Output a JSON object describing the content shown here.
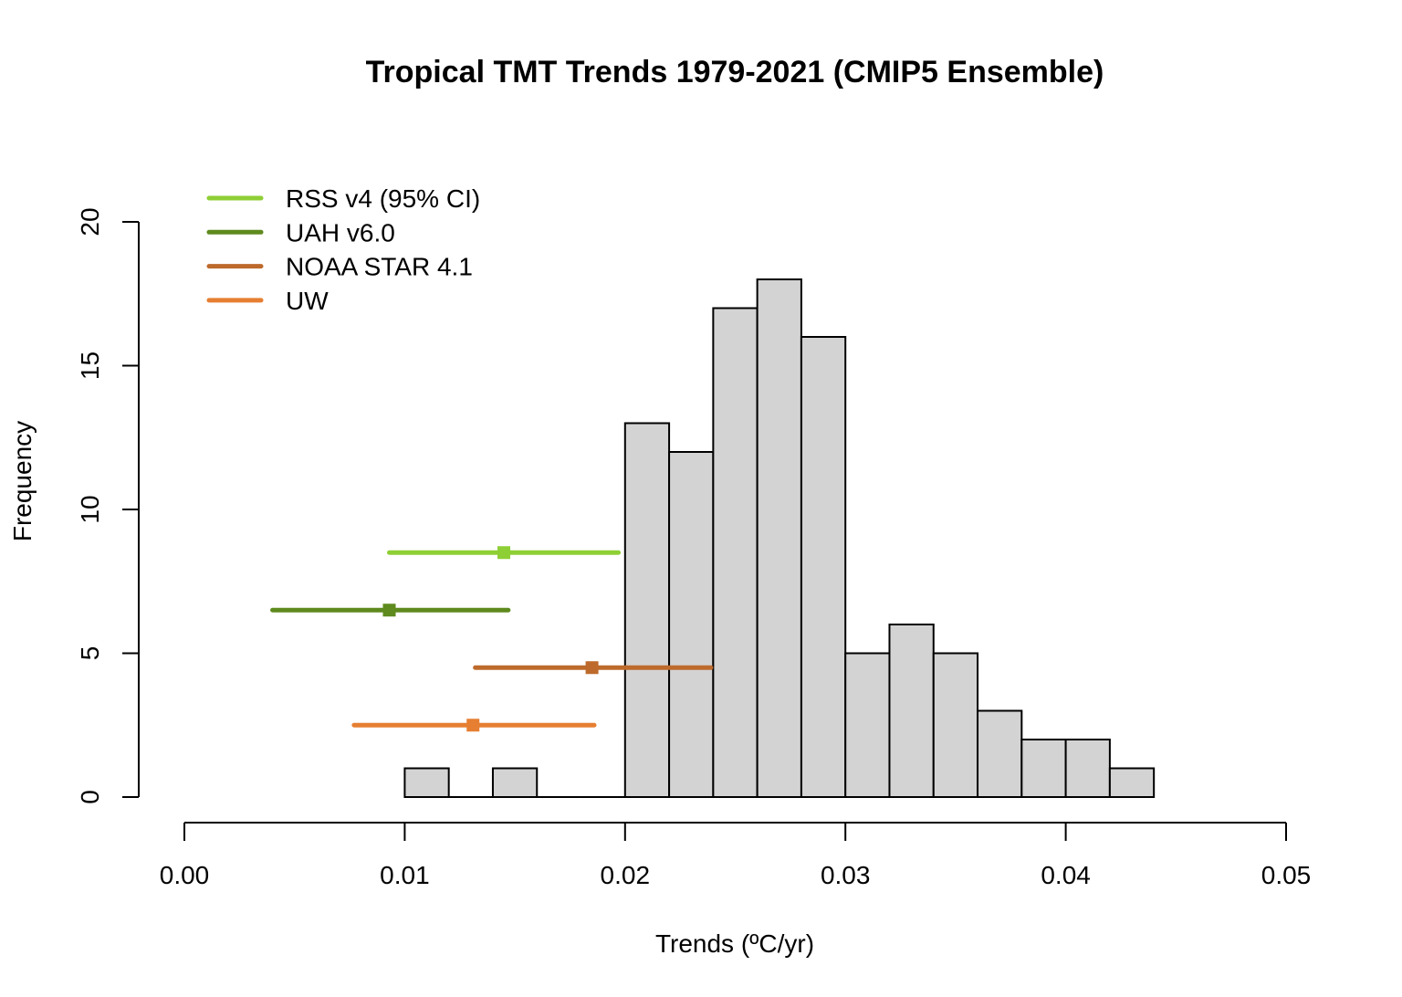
{
  "chart_data": {
    "type": "bar",
    "title": "Tropical TMT Trends 1979-2021 (CMIP5 Ensemble)",
    "xlabel": "Trends (ºC/yr)",
    "ylabel": "Frequency",
    "xlim": [
      0,
      0.05
    ],
    "ylim": [
      0,
      20
    ],
    "grid": false,
    "x_ticks": [
      "0.00",
      "0.01",
      "0.02",
      "0.03",
      "0.04",
      "0.05"
    ],
    "x_tick_values": [
      0,
      0.01,
      0.02,
      0.03,
      0.04,
      0.05
    ],
    "y_ticks": [
      "0",
      "5",
      "10",
      "15",
      "20"
    ],
    "y_tick_values": [
      0,
      5,
      10,
      15,
      20
    ],
    "bar_color": "#d3d3d3",
    "histogram": {
      "bin_edges": [
        0.01,
        0.012,
        0.014,
        0.016,
        0.018,
        0.02,
        0.022,
        0.024,
        0.026,
        0.028,
        0.03,
        0.032,
        0.034,
        0.036,
        0.038,
        0.04,
        0.042,
        0.044
      ],
      "counts": [
        1,
        0,
        1,
        0,
        0,
        13,
        12,
        17,
        18,
        16,
        5,
        6,
        5,
        3,
        2,
        2,
        1
      ]
    },
    "legend_position": "top-left",
    "series": [
      {
        "name": "RSS v4 (95% CI)",
        "color": "#8ecf35",
        "y": 8.5,
        "estimate": 0.0145,
        "ci": [
          0.0093,
          0.0197
        ]
      },
      {
        "name": "UAH v6.0",
        "color": "#5e8a1e",
        "y": 6.5,
        "estimate": 0.0093,
        "ci": [
          0.004,
          0.0147
        ]
      },
      {
        "name": "NOAA STAR 4.1",
        "color": "#bd6a2c",
        "y": 4.5,
        "estimate": 0.0185,
        "ci": [
          0.0132,
          0.0239
        ]
      },
      {
        "name": "UW",
        "color": "#e67f32",
        "y": 2.5,
        "estimate": 0.0131,
        "ci": [
          0.0077,
          0.0186
        ]
      }
    ]
  }
}
